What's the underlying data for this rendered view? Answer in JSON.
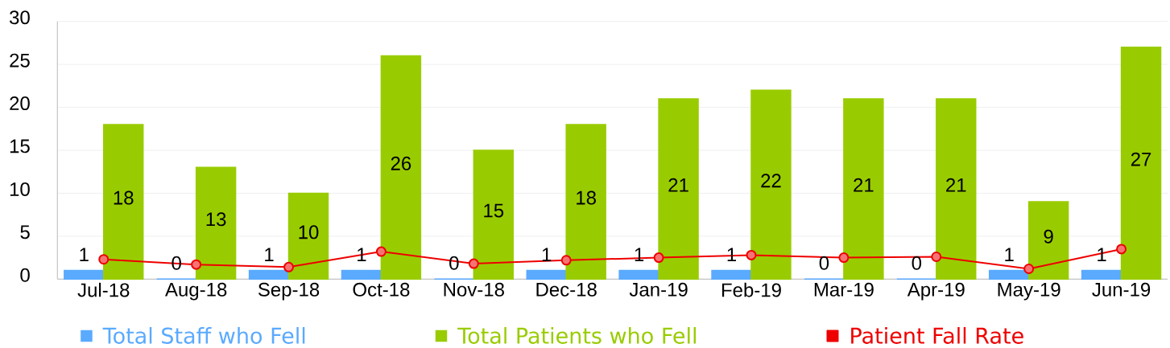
{
  "chart_data": {
    "type": "bar",
    "categories": [
      "Jul-18",
      "Aug-18",
      "Sep-18",
      "Oct-18",
      "Nov-18",
      "Dec-18",
      "Jan-19",
      "Feb-19",
      "Mar-19",
      "Apr-19",
      "May-19",
      "Jun-19"
    ],
    "series": [
      {
        "name": "Total Staff who Fell",
        "color": "#5aaaff",
        "values": [
          1,
          0,
          1,
          1,
          0,
          1,
          1,
          1,
          0,
          0,
          1,
          1
        ],
        "data_labels": true
      },
      {
        "name": "Total Patients who Fell",
        "color": "#99cc00",
        "values": [
          18,
          13,
          10,
          26,
          15,
          18,
          21,
          22,
          21,
          21,
          9,
          27
        ],
        "data_labels": true
      },
      {
        "name": "Patient Fall Rate",
        "type": "line",
        "color": "#ee0000",
        "marker": "circle",
        "values": [
          2.3,
          1.7,
          1.4,
          3.2,
          1.8,
          2.2,
          2.5,
          2.8,
          2.5,
          2.6,
          1.2,
          3.5
        ]
      }
    ],
    "ylim": [
      0,
      30
    ],
    "yticks": [
      0,
      5,
      10,
      15,
      20,
      25,
      30
    ],
    "grid": "y",
    "legend": "bottom"
  }
}
